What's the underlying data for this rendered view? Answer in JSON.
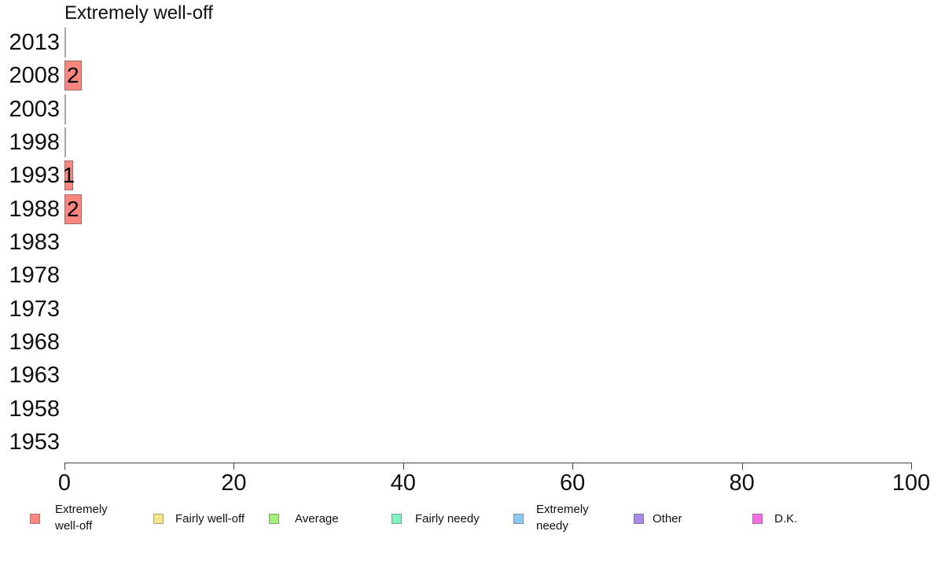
{
  "chart_data": {
    "type": "bar",
    "orientation": "horizontal",
    "title": "Extremely well-off",
    "categories": [
      "2013",
      "2008",
      "2003",
      "1998",
      "1993",
      "1988",
      "1983",
      "1978",
      "1973",
      "1968",
      "1963",
      "1958",
      "1953"
    ],
    "series": [
      {
        "name": "Extremely well-off",
        "color": "#f98780",
        "values": [
          0,
          2,
          0,
          0,
          1,
          2,
          null,
          null,
          null,
          null,
          null,
          null,
          null
        ]
      }
    ],
    "xlabel": "",
    "ylabel": "",
    "xlim": [
      0,
      100
    ],
    "x_ticks": [
      0,
      20,
      40,
      60,
      80,
      100
    ],
    "grid": false,
    "legend_position": "bottom",
    "legend": [
      {
        "label": "Extremely well-off",
        "color": "#f98780"
      },
      {
        "label": "Fairly well-off",
        "color": "#f6e68b"
      },
      {
        "label": "Average",
        "color": "#a4ef79"
      },
      {
        "label": "Fairly needy",
        "color": "#7ff4c3"
      },
      {
        "label": "Extremely needy",
        "color": "#8ec9f2"
      },
      {
        "label": "Other",
        "color": "#a78be8"
      },
      {
        "label": "D.K.",
        "color": "#f06fe3"
      }
    ]
  },
  "colors": {
    "bar_border": "rgba(80,80,80,0.55)",
    "axis": "#444444",
    "text": "#101010"
  }
}
